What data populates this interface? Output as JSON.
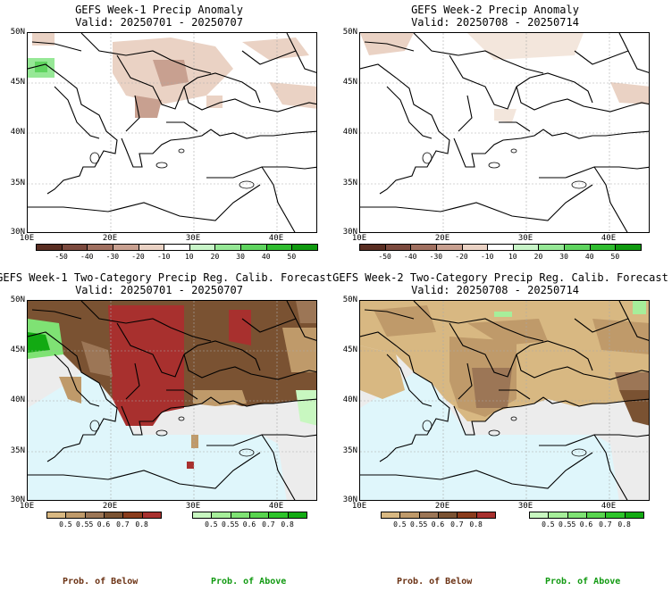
{
  "panels": [
    {
      "id": "w1-anom",
      "title": "GEFS Week-1 Precip Anomaly",
      "valid": "Valid: 20250701 - 20250707"
    },
    {
      "id": "w2-anom",
      "title": "GEFS Week-2 Precip Anomaly",
      "valid": "Valid: 20250708 - 20250714"
    },
    {
      "id": "w1-prob",
      "title": "GEFS Week-1 Two-Category Precip Reg. Calib. Forecast",
      "valid": "Valid: 20250701 - 20250707"
    },
    {
      "id": "w2-prob",
      "title": "GEFS Week-2 Two-Category Precip Reg. Calib. Forecast",
      "valid": "Valid: 20250708 - 20250714"
    }
  ],
  "axes": {
    "lat_labels": [
      "50N",
      "45N",
      "40N",
      "35N",
      "30N"
    ],
    "lon_labels": [
      "10E",
      "20E",
      "30E",
      "40E"
    ]
  },
  "anomaly_colorbar": {
    "ticks": [
      "-50",
      "-40",
      "-30",
      "-20",
      "-10",
      "10",
      "20",
      "30",
      "40",
      "50"
    ],
    "colors": [
      "#5a2e22",
      "#7c4a3e",
      "#a07060",
      "#c8a090",
      "#ead2c4",
      "#ffffff",
      "#c8f5c8",
      "#96e896",
      "#5fd45f",
      "#2fbc2f",
      "#109a10"
    ]
  },
  "below_colorbar": {
    "ticks": [
      "0.5",
      "0.55",
      "0.6",
      "0.7",
      "0.8"
    ],
    "colors": [
      "#d8b882",
      "#bf9a6a",
      "#9c7656",
      "#7a5232",
      "#8a3c1c",
      "#a8302e"
    ]
  },
  "above_colorbar": {
    "ticks": [
      "0.5",
      "0.55",
      "0.6",
      "0.7",
      "0.8"
    ],
    "colors": [
      "#c8f7c0",
      "#a6ee9a",
      "#7fe274",
      "#58d44e",
      "#2dc42a",
      "#12aa12"
    ]
  },
  "legend": {
    "below": "Prob. of Below",
    "above": "Prob. of Above"
  },
  "colors": {
    "below_text": "#6b3214",
    "above_text": "#129a12",
    "sea": "#dff6fb",
    "outside": "#ececec"
  }
}
